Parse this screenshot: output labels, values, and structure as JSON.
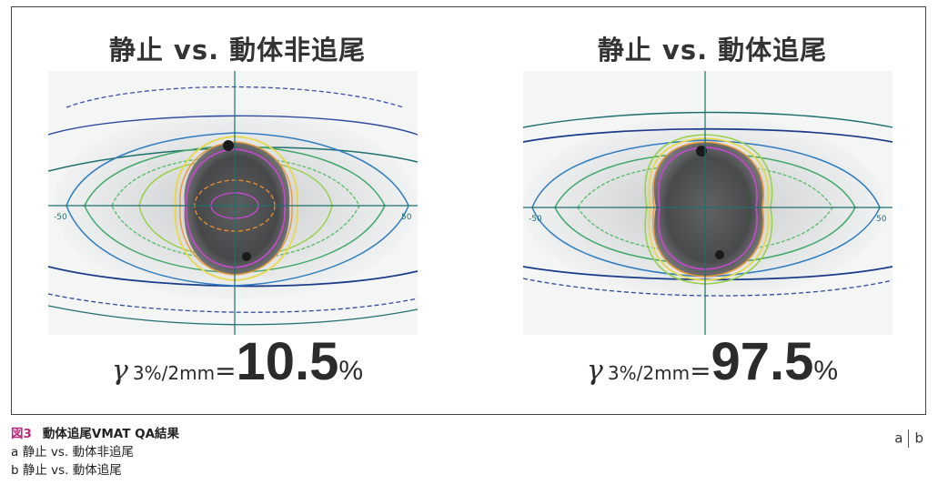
{
  "panels": [
    {
      "title": "静止 vs. 動体非追尾",
      "gamma_symbol": "γ",
      "gamma_criteria": "3%/2mm",
      "gamma_equals": "=",
      "gamma_value": "10.5",
      "gamma_unit": "%",
      "axis_min_label": "-50",
      "axis_max_label": "50"
    },
    {
      "title": "静止 vs. 動体追尾",
      "gamma_symbol": "γ",
      "gamma_criteria": "3%/2mm",
      "gamma_equals": "=",
      "gamma_value": "97.5",
      "gamma_unit": "%",
      "axis_min_label": "-50",
      "axis_max_label": "50"
    }
  ],
  "caption": {
    "figure_number": "図3",
    "title": "動体追尾VMAT QA結果",
    "items": [
      "a 静止 vs. 動体非追尾",
      "b 静止 vs. 動体追尾"
    ]
  },
  "panel_index": {
    "left": "a",
    "right": "b"
  },
  "colors": {
    "figure_number": "#c0267a",
    "isodose_outer": "#1a3a8a",
    "isodose_mid": "#2e9f6a",
    "isodose_inner": "#b838c8",
    "axis": "#1f6f6f"
  }
}
